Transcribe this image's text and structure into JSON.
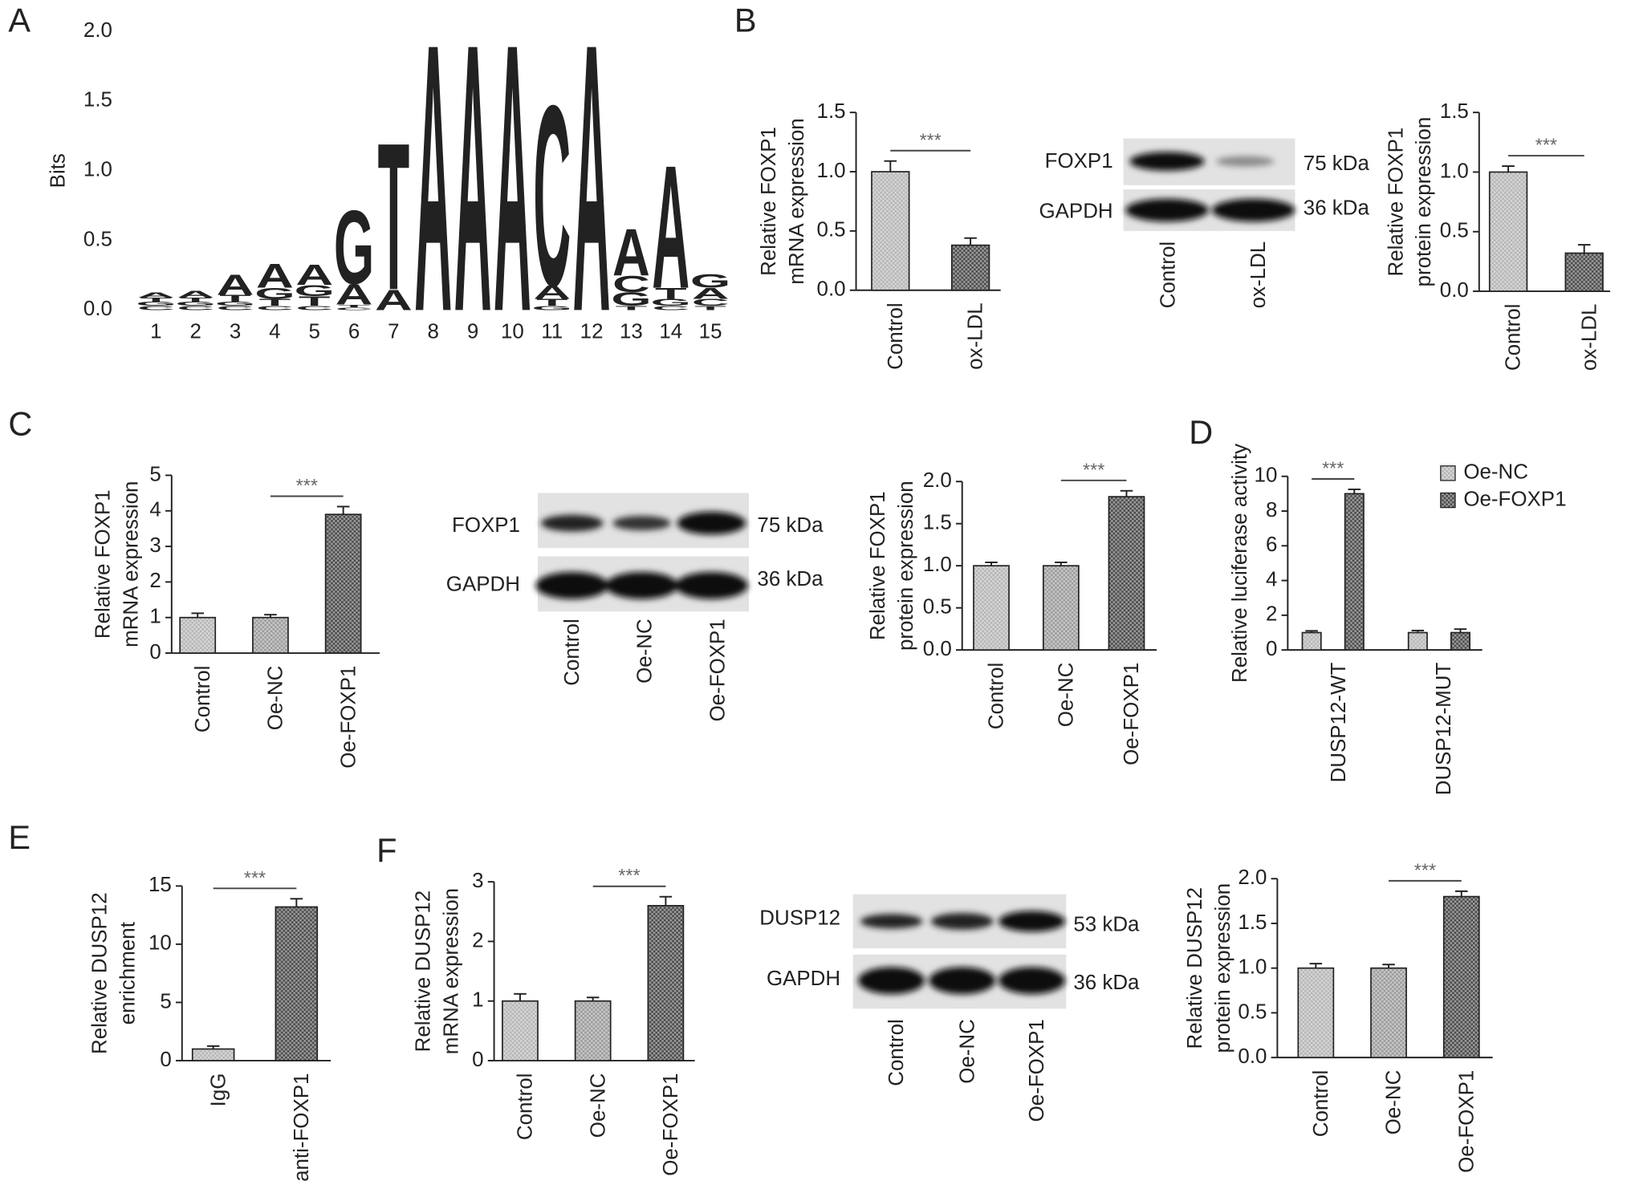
{
  "panel_labels": [
    "A",
    "B",
    "C",
    "D",
    "E",
    "F"
  ],
  "blots": [
    {
      "rows": [
        "FOXP1",
        "GAPDH"
      ],
      "sizes": [
        "75 kDa",
        "36 kDa"
      ],
      "lanes": [
        "Control",
        "ox-LDL"
      ]
    },
    {
      "rows": [
        "FOXP1",
        "GAPDH"
      ],
      "sizes": [
        "75 kDa",
        "36 kDa"
      ],
      "lanes": [
        "Control",
        "Oe-NC",
        "Oe-FOXP1"
      ]
    },
    {
      "rows": [
        "DUSP12",
        "GAPDH"
      ],
      "sizes": [
        "53 kDa",
        "36 kDa"
      ],
      "lanes": [
        "Control",
        "Oe-NC",
        "Oe-FOXP1"
      ]
    }
  ],
  "chart_data": [
    {
      "type": "logo",
      "ylabel": "Bits",
      "categories": [
        "1",
        "2",
        "3",
        "4",
        "5",
        "6",
        "7",
        "8",
        "9",
        "10",
        "11",
        "12",
        "13",
        "14",
        "15"
      ],
      "ylim": [
        0,
        2
      ],
      "yticks": [
        {
          "value": 0,
          "label": "0.0"
        },
        {
          "value": 0.5,
          "label": "0.5"
        },
        {
          "value": 1,
          "label": "1.0"
        },
        {
          "value": 1.5,
          "label": "1.5"
        },
        {
          "value": 2,
          "label": "2.0"
        }
      ],
      "series": [
        {
          "name": "A",
          "color": "#23a14b",
          "values": [
            0.04,
            0.05,
            0.15,
            0.18,
            0.15,
            0.15,
            0.15,
            2.0,
            2.0,
            2.0,
            0.1,
            2.0,
            0.35,
            0.92,
            0.08
          ]
        },
        {
          "name": "C",
          "color": "#2a6db5",
          "values": [
            0.03,
            0.03,
            0.03,
            0.03,
            0.03,
            0.02,
            0,
            0,
            0,
            0,
            1.35,
            0,
            0.12,
            0.03,
            0.05
          ]
        },
        {
          "name": "G",
          "color": "#f5a623",
          "values": [
            0.03,
            0.03,
            0.03,
            0.08,
            0.08,
            0.55,
            0,
            0,
            0,
            0,
            0.03,
            0,
            0.1,
            0.05,
            0.1
          ]
        },
        {
          "name": "T",
          "color": "#d62728",
          "values": [
            0.03,
            0.03,
            0.05,
            0.05,
            0.07,
            0.02,
            1.1,
            0,
            0,
            0,
            0.05,
            0,
            0.03,
            0.08,
            0.03
          ]
        }
      ]
    },
    {
      "type": "bar",
      "ylabel": [
        "Relative FOXP1",
        "mRNA expression"
      ],
      "categories": [
        "Control",
        "ox-LDL"
      ],
      "values": [
        1.0,
        0.38
      ],
      "errors": [
        0.09,
        0.06
      ],
      "colors": [
        "#b5b5b5",
        "#4a4a4a"
      ],
      "ylim": [
        0,
        1.5
      ],
      "yticks": [
        {
          "value": 0,
          "label": "0.0"
        },
        {
          "value": 0.5,
          "label": "0.5"
        },
        {
          "value": 1,
          "label": "1.0"
        },
        {
          "value": 1.5,
          "label": "1.5"
        }
      ],
      "annotation": "***"
    },
    {
      "type": "bar",
      "ylabel": [
        "Relative FOXP1",
        "protein expression"
      ],
      "categories": [
        "Control",
        "ox-LDL"
      ],
      "values": [
        1.0,
        0.32
      ],
      "errors": [
        0.05,
        0.07
      ],
      "colors": [
        "#b5b5b5",
        "#4a4a4a"
      ],
      "ylim": [
        0,
        1.5
      ],
      "yticks": [
        {
          "value": 0,
          "label": "0.0"
        },
        {
          "value": 0.5,
          "label": "0.5"
        },
        {
          "value": 1,
          "label": "1.0"
        },
        {
          "value": 1.5,
          "label": "1.5"
        }
      ],
      "annotation": "***"
    },
    {
      "type": "bar",
      "ylabel": [
        "Relative FOXP1",
        "mRNA expression"
      ],
      "categories": [
        "Control",
        "Oe-NC",
        "Oe-FOXP1"
      ],
      "values": [
        1.0,
        1.0,
        3.9
      ],
      "errors": [
        0.12,
        0.08,
        0.22
      ],
      "colors": [
        "#b5b5b5",
        "#9a9a9a",
        "#4a4a4a"
      ],
      "ylim": [
        0,
        5
      ],
      "yticks": [
        0,
        1,
        2,
        3,
        4,
        5
      ],
      "annotation": "***"
    },
    {
      "type": "bar",
      "ylabel": [
        "Relative FOXP1",
        "protein expression"
      ],
      "categories": [
        "Control",
        "Oe-NC",
        "Oe-FOXP1"
      ],
      "values": [
        1.0,
        1.0,
        1.82
      ],
      "errors": [
        0.04,
        0.04,
        0.07
      ],
      "colors": [
        "#b5b5b5",
        "#9a9a9a",
        "#4a4a4a"
      ],
      "ylim": [
        0,
        2
      ],
      "yticks": [
        {
          "value": 0,
          "label": "0.0"
        },
        {
          "value": 0.5,
          "label": "0.5"
        },
        {
          "value": 1,
          "label": "1.0"
        },
        {
          "value": 1.5,
          "label": "1.5"
        },
        {
          "value": 2,
          "label": "2.0"
        }
      ],
      "annotation": "***"
    },
    {
      "type": "grouped_bar",
      "ylabel": [
        "Relative luciferase activity"
      ],
      "categories": [
        "DUSP12-WT",
        "DUSP12-MUT"
      ],
      "series": [
        {
          "name": "Oe-NC",
          "color": "#b5b5b5",
          "values": [
            1.0,
            1.0
          ],
          "errors": [
            0.1,
            0.12
          ]
        },
        {
          "name": "Oe-FOXP1",
          "color": "#4a4a4a",
          "values": [
            9.0,
            1.0
          ],
          "errors": [
            0.25,
            0.2
          ]
        }
      ],
      "ylim": [
        0,
        10
      ],
      "yticks": [
        0,
        2,
        4,
        6,
        8,
        10
      ],
      "legend": "right",
      "annotation": "***"
    },
    {
      "type": "bar",
      "ylabel": [
        "Relative DUSP12",
        "enrichment"
      ],
      "categories": [
        "IgG",
        "anti-FOXP1"
      ],
      "values": [
        1.0,
        13.2
      ],
      "errors": [
        0.25,
        0.7
      ],
      "colors": [
        "#b5b5b5",
        "#4a4a4a"
      ],
      "ylim": [
        0,
        15
      ],
      "yticks": [
        0,
        5,
        10,
        15
      ],
      "annotation": "***"
    },
    {
      "type": "bar",
      "ylabel": [
        "Relative DUSP12",
        "mRNA expression"
      ],
      "categories": [
        "Control",
        "Oe-NC",
        "Oe-FOXP1"
      ],
      "values": [
        1.0,
        1.0,
        2.6
      ],
      "errors": [
        0.12,
        0.06,
        0.15
      ],
      "colors": [
        "#b5b5b5",
        "#9a9a9a",
        "#4a4a4a"
      ],
      "ylim": [
        0,
        3
      ],
      "yticks": [
        0,
        1,
        2,
        3
      ],
      "annotation": "***"
    },
    {
      "type": "bar",
      "ylabel": [
        "Relative DUSP12",
        "protein expression"
      ],
      "categories": [
        "Control",
        "Oe-NC",
        "Oe-FOXP1"
      ],
      "values": [
        1.0,
        1.0,
        1.8
      ],
      "errors": [
        0.05,
        0.04,
        0.06
      ],
      "colors": [
        "#b5b5b5",
        "#9a9a9a",
        "#4a4a4a"
      ],
      "ylim": [
        0,
        2
      ],
      "yticks": [
        {
          "value": 0,
          "label": "0.0"
        },
        {
          "value": 0.5,
          "label": "0.5"
        },
        {
          "value": 1,
          "label": "1.0"
        },
        {
          "value": 1.5,
          "label": "1.5"
        },
        {
          "value": 2,
          "label": "2.0"
        }
      ],
      "annotation": "***"
    }
  ]
}
